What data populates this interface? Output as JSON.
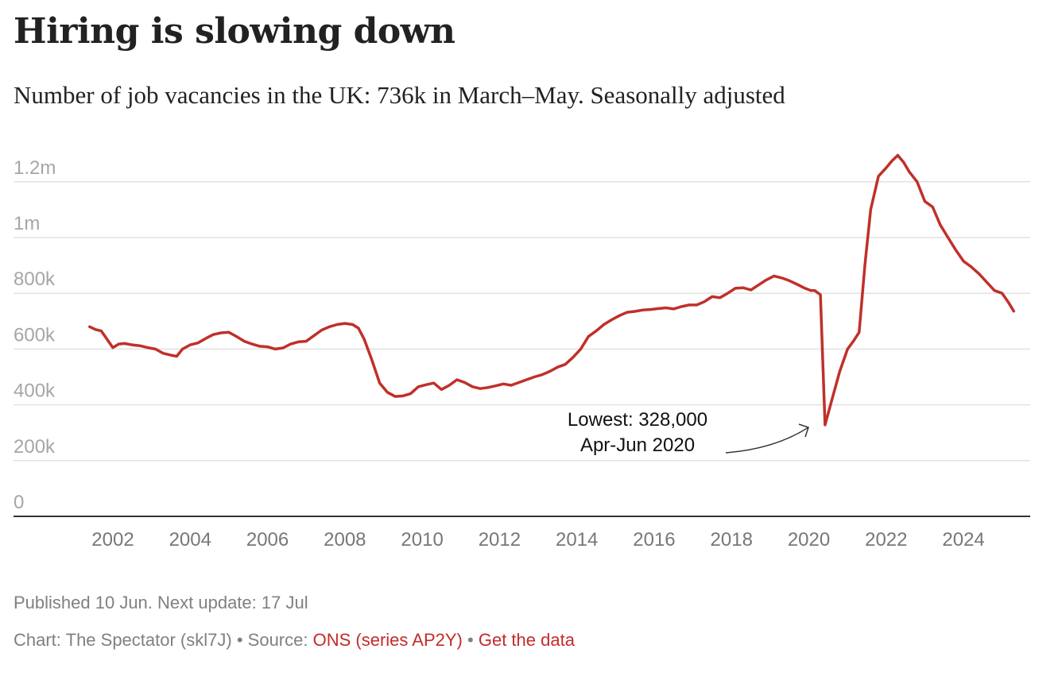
{
  "header": {
    "title": "Hiring is slowing down",
    "subtitle": "Number of job vacancies in the UK: 736k in March–May. Seasonally adjusted"
  },
  "footer": {
    "published": "Published 10 Jun. Next update: 17 Jul",
    "credit_prefix": "Chart: The Spectator (skl7J)",
    "bullet": "•",
    "source_prefix": "Source:",
    "source_link": "ONS (series AP2Y)",
    "data_link": "Get the data"
  },
  "colors": {
    "line": "#c0302a",
    "grid": "#e2e2e2",
    "axis": "#333333",
    "link": "#c42b2b"
  },
  "chart_data": {
    "type": "line",
    "title": "Hiring is slowing down",
    "subtitle": "Number of job vacancies in the UK: 736k in March–May. Seasonally adjusted",
    "xlabel": "",
    "ylabel": "",
    "xlim": [
      2000.9,
      2025.8
    ],
    "ylim": [
      0,
      1300000
    ],
    "grid": true,
    "legend": "none",
    "yticks": [
      {
        "value": 0,
        "label": "0"
      },
      {
        "value": 200000,
        "label": "200k"
      },
      {
        "value": 400000,
        "label": "400k"
      },
      {
        "value": 600000,
        "label": "600k"
      },
      {
        "value": 800000,
        "label": "800k"
      },
      {
        "value": 1000000,
        "label": "1m"
      },
      {
        "value": 1200000,
        "label": "1.2m"
      }
    ],
    "xticks": [
      {
        "value": 2002,
        "label": "2002"
      },
      {
        "value": 2004,
        "label": "2004"
      },
      {
        "value": 2006,
        "label": "2006"
      },
      {
        "value": 2008,
        "label": "2008"
      },
      {
        "value": 2010,
        "label": "2010"
      },
      {
        "value": 2012,
        "label": "2012"
      },
      {
        "value": 2014,
        "label": "2014"
      },
      {
        "value": 2016,
        "label": "2016"
      },
      {
        "value": 2018,
        "label": "2018"
      },
      {
        "value": 2020,
        "label": "2020"
      },
      {
        "value": 2022,
        "label": "2022"
      },
      {
        "value": 2024,
        "label": "2024"
      }
    ],
    "series": [
      {
        "name": "Job vacancies",
        "x": [
          2001.4,
          2001.55,
          2001.7,
          2001.85,
          2002.0,
          2002.15,
          2002.3,
          2002.5,
          2002.7,
          2002.9,
          2003.1,
          2003.3,
          2003.5,
          2003.65,
          2003.8,
          2004.0,
          2004.2,
          2004.4,
          2004.6,
          2004.8,
          2005.0,
          2005.2,
          2005.4,
          2005.6,
          2005.8,
          2006.0,
          2006.2,
          2006.4,
          2006.6,
          2006.8,
          2007.0,
          2007.2,
          2007.4,
          2007.6,
          2007.8,
          2008.0,
          2008.2,
          2008.35,
          2008.5,
          2008.7,
          2008.9,
          2009.1,
          2009.3,
          2009.5,
          2009.7,
          2009.9,
          2010.1,
          2010.3,
          2010.5,
          2010.7,
          2010.9,
          2011.1,
          2011.3,
          2011.5,
          2011.7,
          2011.9,
          2012.1,
          2012.3,
          2012.5,
          2012.7,
          2012.9,
          2013.1,
          2013.3,
          2013.5,
          2013.7,
          2013.9,
          2014.1,
          2014.3,
          2014.5,
          2014.7,
          2014.9,
          2015.1,
          2015.3,
          2015.5,
          2015.7,
          2015.9,
          2016.1,
          2016.3,
          2016.5,
          2016.7,
          2016.9,
          2017.1,
          2017.3,
          2017.5,
          2017.7,
          2017.9,
          2018.1,
          2018.3,
          2018.5,
          2018.7,
          2018.9,
          2019.1,
          2019.3,
          2019.5,
          2019.7,
          2019.9,
          2020.05,
          2020.15,
          2020.3,
          2020.42,
          2020.6,
          2020.8,
          2021.0,
          2021.15,
          2021.3,
          2021.45,
          2021.6,
          2021.8,
          2022.0,
          2022.15,
          2022.3,
          2022.45,
          2022.6,
          2022.8,
          2023.0,
          2023.2,
          2023.4,
          2023.6,
          2023.8,
          2024.0,
          2024.2,
          2024.4,
          2024.6,
          2024.8,
          2025.0,
          2025.15,
          2025.3
        ],
        "values": [
          680000,
          670000,
          665000,
          635000,
          605000,
          618000,
          620000,
          615000,
          612000,
          605000,
          600000,
          585000,
          578000,
          574000,
          600000,
          615000,
          622000,
          638000,
          652000,
          658000,
          660000,
          645000,
          628000,
          618000,
          610000,
          608000,
          600000,
          604000,
          618000,
          626000,
          628000,
          648000,
          668000,
          680000,
          688000,
          692000,
          688000,
          675000,
          635000,
          560000,
          478000,
          445000,
          430000,
          432000,
          440000,
          465000,
          472000,
          478000,
          455000,
          470000,
          490000,
          480000,
          465000,
          458000,
          462000,
          468000,
          475000,
          470000,
          480000,
          490000,
          500000,
          508000,
          520000,
          535000,
          545000,
          570000,
          600000,
          645000,
          665000,
          688000,
          705000,
          720000,
          732000,
          735000,
          740000,
          742000,
          745000,
          748000,
          744000,
          752000,
          758000,
          758000,
          770000,
          788000,
          784000,
          800000,
          818000,
          820000,
          812000,
          830000,
          848000,
          862000,
          855000,
          845000,
          832000,
          818000,
          810000,
          810000,
          795000,
          328000,
          420000,
          520000,
          600000,
          628000,
          660000,
          900000,
          1100000,
          1220000,
          1250000,
          1275000,
          1295000,
          1270000,
          1235000,
          1200000,
          1130000,
          1110000,
          1045000,
          1000000,
          955000,
          915000,
          895000,
          870000,
          840000,
          810000,
          800000,
          770000,
          736000
        ]
      }
    ],
    "annotations": [
      {
        "text_line1": "Lowest: 328,000",
        "text_line2": "Apr-Jun 2020",
        "x": 2020.42,
        "y": 328000,
        "arrow": true
      }
    ]
  }
}
